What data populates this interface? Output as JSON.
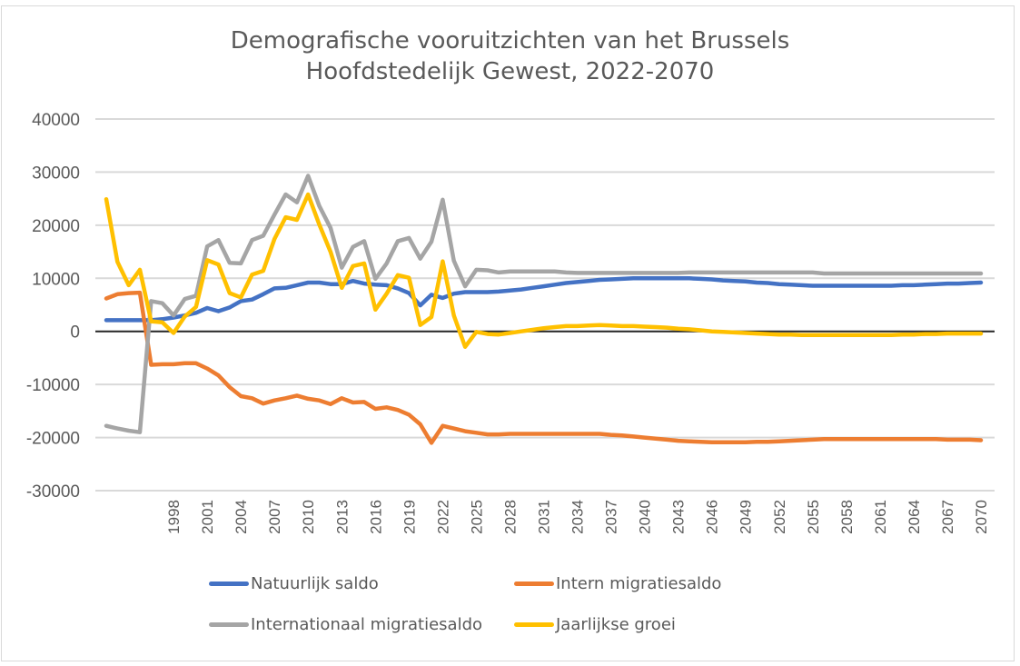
{
  "chart_data": {
    "type": "line",
    "title": "Demografische vooruitzichten van het Brussels Hoofdstedelijk Gewest, 2022-2070",
    "title_lines": [
      "Demografische vooruitzichten van het Brussels",
      "Hoofdstedelijk Gewest, 2022-2070"
    ],
    "xlabel": "",
    "ylabel": "",
    "ylim": [
      -30000,
      40000
    ],
    "yticks": [
      40000,
      30000,
      20000,
      10000,
      0,
      -10000,
      -20000,
      -30000
    ],
    "xlim": [
      1992,
      2070
    ],
    "xticks": [
      1998,
      2001,
      2004,
      2007,
      2010,
      2013,
      2016,
      2019,
      2022,
      2025,
      2028,
      2031,
      2034,
      2037,
      2040,
      2043,
      2046,
      2049,
      2052,
      2055,
      2058,
      2061,
      2064,
      2067,
      2070
    ],
    "grid": true,
    "legend_position": "bottom",
    "x": [
      1992,
      1993,
      1994,
      1995,
      1996,
      1997,
      1998,
      1999,
      2000,
      2001,
      2002,
      2003,
      2004,
      2005,
      2006,
      2007,
      2008,
      2009,
      2010,
      2011,
      2012,
      2013,
      2014,
      2015,
      2016,
      2017,
      2018,
      2019,
      2020,
      2021,
      2022,
      2023,
      2024,
      2025,
      2026,
      2027,
      2028,
      2029,
      2030,
      2031,
      2032,
      2033,
      2034,
      2035,
      2036,
      2037,
      2038,
      2039,
      2040,
      2041,
      2042,
      2043,
      2044,
      2045,
      2046,
      2047,
      2048,
      2049,
      2050,
      2051,
      2052,
      2053,
      2054,
      2055,
      2056,
      2057,
      2058,
      2059,
      2060,
      2061,
      2062,
      2063,
      2064,
      2065,
      2066,
      2067,
      2068,
      2069,
      2070
    ],
    "series": [
      {
        "name": "Natuurlijk saldo",
        "color": "#4472C4",
        "values": [
          2100,
          2100,
          2100,
          2100,
          2100,
          2300,
          2600,
          3000,
          3500,
          4400,
          3800,
          4500,
          5700,
          6000,
          7000,
          8100,
          8200,
          8700,
          9200,
          9200,
          8900,
          8900,
          9500,
          9000,
          8800,
          8700,
          8100,
          7200,
          4900,
          6900,
          6300,
          7100,
          7400,
          7400,
          7400,
          7500,
          7700,
          7900,
          8200,
          8500,
          8800,
          9100,
          9300,
          9500,
          9700,
          9800,
          9900,
          10000,
          10000,
          10000,
          10000,
          10000,
          10000,
          9900,
          9800,
          9600,
          9500,
          9400,
          9200,
          9100,
          8900,
          8800,
          8700,
          8600,
          8600,
          8600,
          8600,
          8600,
          8600,
          8600,
          8600,
          8700,
          8700,
          8800,
          8900,
          9000,
          9000,
          9100,
          9200
        ]
      },
      {
        "name": "Intern migratiesaldo",
        "color": "#ED7D31",
        "values": [
          6200,
          7000,
          7200,
          7300,
          -6300,
          -6200,
          -6200,
          -6000,
          -6000,
          -7000,
          -8300,
          -10500,
          -12200,
          -12600,
          -13600,
          -13000,
          -12600,
          -12100,
          -12700,
          -13000,
          -13700,
          -12600,
          -13400,
          -13300,
          -14600,
          -14300,
          -14800,
          -15700,
          -17500,
          -21000,
          -17800,
          -18300,
          -18800,
          -19100,
          -19400,
          -19400,
          -19300,
          -19300,
          -19300,
          -19300,
          -19300,
          -19300,
          -19300,
          -19300,
          -19300,
          -19500,
          -19600,
          -19800,
          -20000,
          -20200,
          -20400,
          -20600,
          -20700,
          -20800,
          -20900,
          -20900,
          -20900,
          -20900,
          -20800,
          -20800,
          -20700,
          -20600,
          -20500,
          -20400,
          -20300,
          -20300,
          -20300,
          -20300,
          -20300,
          -20300,
          -20300,
          -20300,
          -20300,
          -20300,
          -20300,
          -20400,
          -20400,
          -20400,
          -20500
        ]
      },
      {
        "name": "Internationaal migratiesaldo",
        "color": "#A5A5A5",
        "values": [
          -17800,
          -18300,
          -18700,
          -19000,
          5700,
          5300,
          3000,
          6100,
          6700,
          16000,
          17200,
          12900,
          12800,
          17200,
          18000,
          22000,
          25800,
          24300,
          29300,
          23600,
          19500,
          12000,
          15900,
          17000,
          9900,
          12800,
          17000,
          17600,
          13700,
          16900,
          24800,
          13300,
          8500,
          11600,
          11500,
          11100,
          11300,
          11300,
          11300,
          11300,
          11300,
          11100,
          11000,
          11000,
          11000,
          11000,
          11000,
          11000,
          11000,
          11000,
          11000,
          11000,
          11100,
          11100,
          11100,
          11100,
          11100,
          11100,
          11100,
          11100,
          11100,
          11100,
          11100,
          11100,
          10900,
          10900,
          10900,
          10900,
          10900,
          10900,
          10900,
          10900,
          10900,
          10900,
          10900,
          10900,
          10900,
          10900,
          10900
        ]
      },
      {
        "name": "Jaarlijkse groei",
        "color": "#FFC000",
        "values": [
          24900,
          13100,
          8700,
          11600,
          1900,
          1700,
          -300,
          2800,
          4600,
          13400,
          12600,
          7200,
          6400,
          10700,
          11400,
          17400,
          21500,
          21000,
          25800,
          20100,
          15000,
          8200,
          12300,
          12800,
          4100,
          7100,
          10600,
          10100,
          1200,
          2700,
          13200,
          3000,
          -2900,
          -100,
          -500,
          -600,
          -300,
          0,
          300,
          600,
          800,
          1000,
          1000,
          1100,
          1200,
          1100,
          1000,
          1000,
          900,
          800,
          700,
          500,
          400,
          200,
          0,
          -100,
          -200,
          -300,
          -400,
          -500,
          -600,
          -600,
          -700,
          -700,
          -700,
          -700,
          -700,
          -700,
          -700,
          -700,
          -700,
          -600,
          -600,
          -500,
          -500,
          -400,
          -400,
          -400,
          -400
        ]
      }
    ]
  }
}
